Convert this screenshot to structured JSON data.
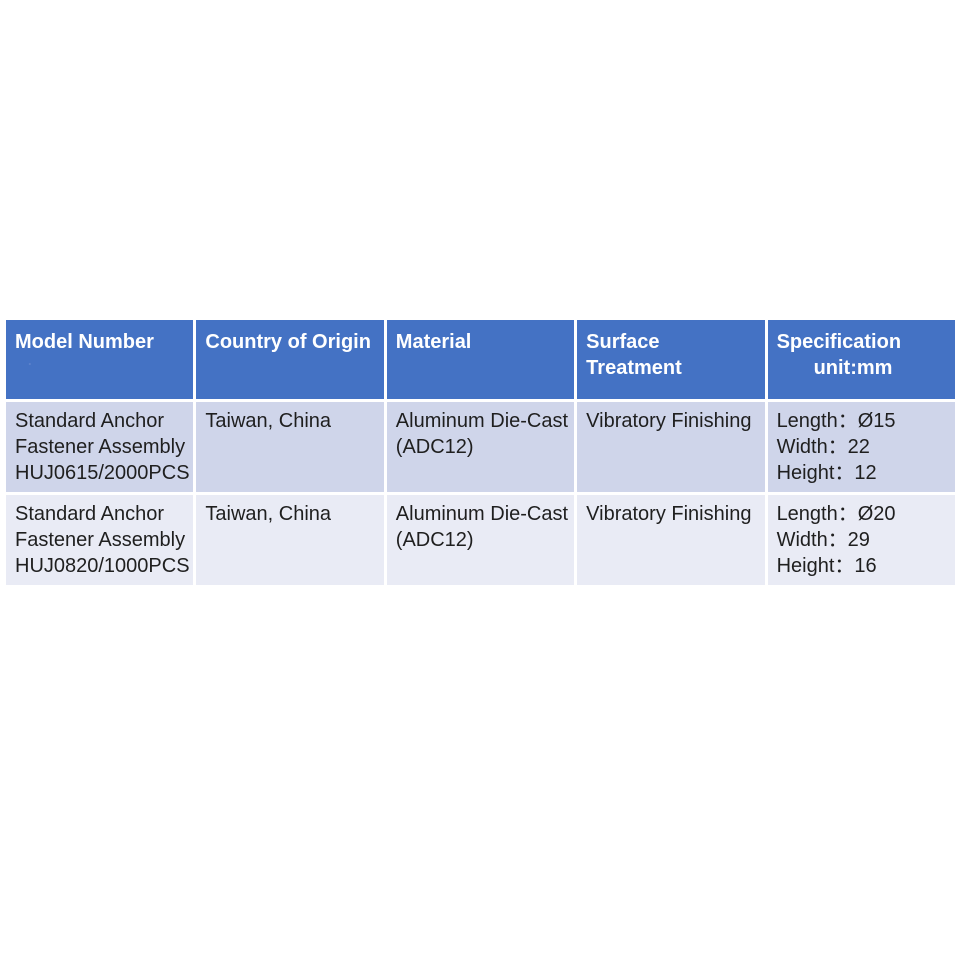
{
  "page": {
    "background": "#ffffff"
  },
  "table": {
    "colors": {
      "header_bg": "#4472C4",
      "header_text": "#FFFFFF",
      "row_odd_bg": "#CFD5EA",
      "row_even_bg": "#E9EBF5",
      "divider": "#FFFFFF",
      "body_text": "#1F1F1F"
    },
    "columns": [
      {
        "label": "Model Number",
        "note": "."
      },
      {
        "label": "Country of Origin"
      },
      {
        "label": "Material"
      },
      {
        "label": "Surface Treatment"
      },
      {
        "label": "Specification",
        "sublabel": "unit:mm"
      }
    ],
    "rows": [
      {
        "model": "Standard Anchor\nFastener Assembly\nHUJ0615/2000PCS",
        "origin": "Taiwan, China",
        "material": "Aluminum Die-Cast\n(ADC12)",
        "surface": "Vibratory Finishing",
        "spec": "Length：Ø15\nWidth：22\nHeight：12"
      },
      {
        "model": "Standard Anchor\nFastener Assembly\nHUJ0820/1000PCS",
        "origin": "Taiwan, China",
        "material": "Aluminum Die-Cast\n(ADC12)",
        "surface": "Vibratory Finishing",
        "spec": "Length：Ø20\nWidth：29\nHeight：16"
      }
    ]
  }
}
